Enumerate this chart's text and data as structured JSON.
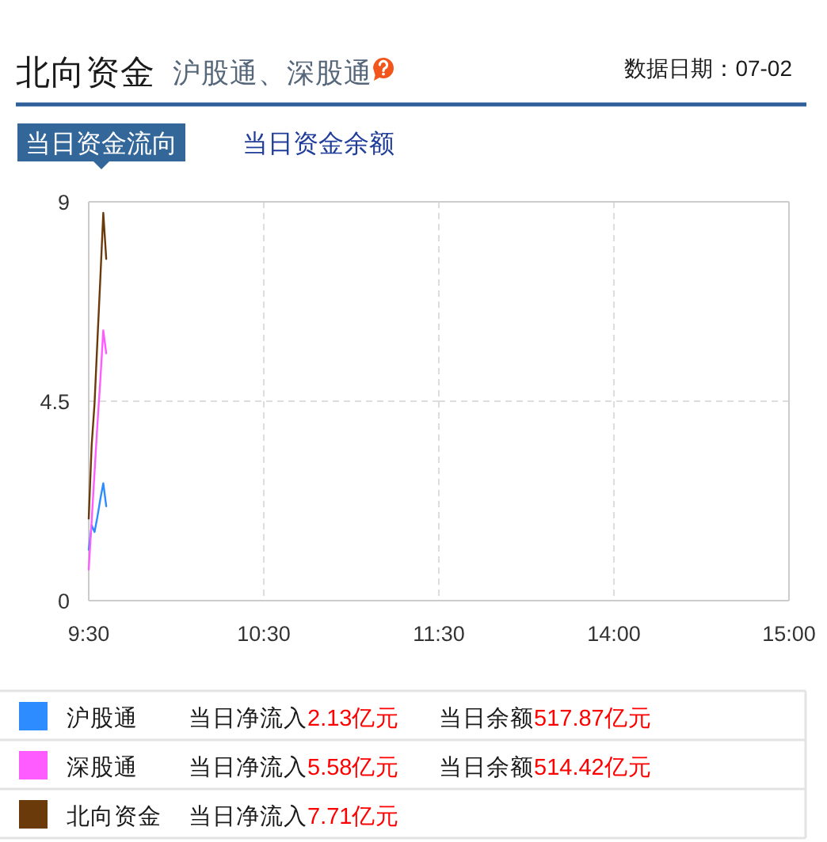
{
  "chart_data": [
    {
      "type": "line",
      "title": "北向资金",
      "subtitle": "沪股通、深股通",
      "x": [
        9.5,
        9.5167,
        9.5333,
        9.55,
        9.5667,
        9.5833,
        9.6
      ],
      "series": [
        {
          "name": "沪股通",
          "color": "#2d8cff",
          "values": [
            1.15,
            1.7,
            1.55,
            1.9,
            2.3,
            2.65,
            2.13
          ]
        },
        {
          "name": "深股通",
          "color": "#ff5cff",
          "values": [
            0.7,
            1.8,
            2.9,
            4.0,
            5.0,
            6.1,
            5.58
          ]
        },
        {
          "name": "北向资金",
          "color": "#6b3a0b",
          "values": [
            1.85,
            3.5,
            4.45,
            5.9,
            7.3,
            8.75,
            7.71
          ]
        }
      ],
      "xlim": [
        9.5,
        11.5
      ],
      "ylim": [
        0,
        9
      ],
      "xticks": [
        {
          "value": 9.5,
          "label": "9:30"
        },
        {
          "value": 10.5,
          "label": "10:30"
        },
        {
          "value": 11.5,
          "label": "11:30"
        }
      ],
      "yticks": [
        0,
        4.5,
        9
      ],
      "grid": true,
      "legend": "bottom",
      "annotations": [
        "数据日期：07-02",
        "当日资金流向",
        "当日资金余额",
        "当日净流入",
        "2.13亿元",
        "当日余额",
        "517.87亿元",
        "当日净流入",
        "5.58亿元",
        "当日余额",
        "514.42亿元",
        "当日净流入",
        "7.71亿元"
      ]
    },
    {
      "type": "line",
      "xlim": [
        13,
        15
      ],
      "ylim": [
        0,
        9
      ],
      "xticks": [
        {
          "value": 14,
          "label": "14:00"
        },
        {
          "value": 15,
          "label": "15:00"
        }
      ],
      "yticks": [
        0,
        4.5,
        9
      ],
      "grid": true,
      "tick_labels": "x"
    }
  ]
}
